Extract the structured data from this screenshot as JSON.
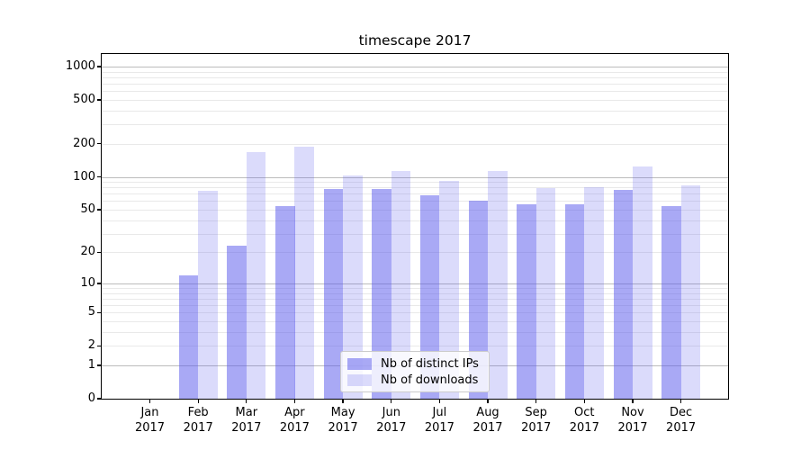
{
  "chart_data": {
    "type": "bar",
    "title": "timescape 2017",
    "categories": [
      "Jan",
      "Feb",
      "Mar",
      "Apr",
      "May",
      "Jun",
      "Jul",
      "Aug",
      "Sep",
      "Oct",
      "Nov",
      "Dec"
    ],
    "x_year_line": "2017",
    "series": [
      {
        "name": "Nb of distinct IPs",
        "color": "rgba(90,90,235,0.52)",
        "values": [
          0,
          12,
          23,
          54,
          78,
          77,
          68,
          60,
          56,
          56,
          76,
          54
        ]
      },
      {
        "name": "Nb of downloads",
        "color": "rgba(90,90,235,0.22)",
        "values": [
          0,
          75,
          168,
          190,
          103,
          113,
          92,
          113,
          79,
          80,
          124,
          84
        ]
      }
    ],
    "yscale": "log10(1+y)",
    "yticks": [
      1000,
      500,
      200,
      100,
      50,
      20,
      10,
      5,
      2,
      1,
      0
    ],
    "ylim": [
      0,
      1300
    ],
    "bar_width_fraction": 0.4,
    "grid": {
      "major_values": [
        1,
        10,
        100,
        1000
      ],
      "major_color": "#bcbcbc",
      "minor_color": "#e9e9e9"
    },
    "legend": {
      "position": "lower-center"
    },
    "colors": {
      "spine": "#000000",
      "text": "#000000",
      "background": "#ffffff"
    }
  }
}
